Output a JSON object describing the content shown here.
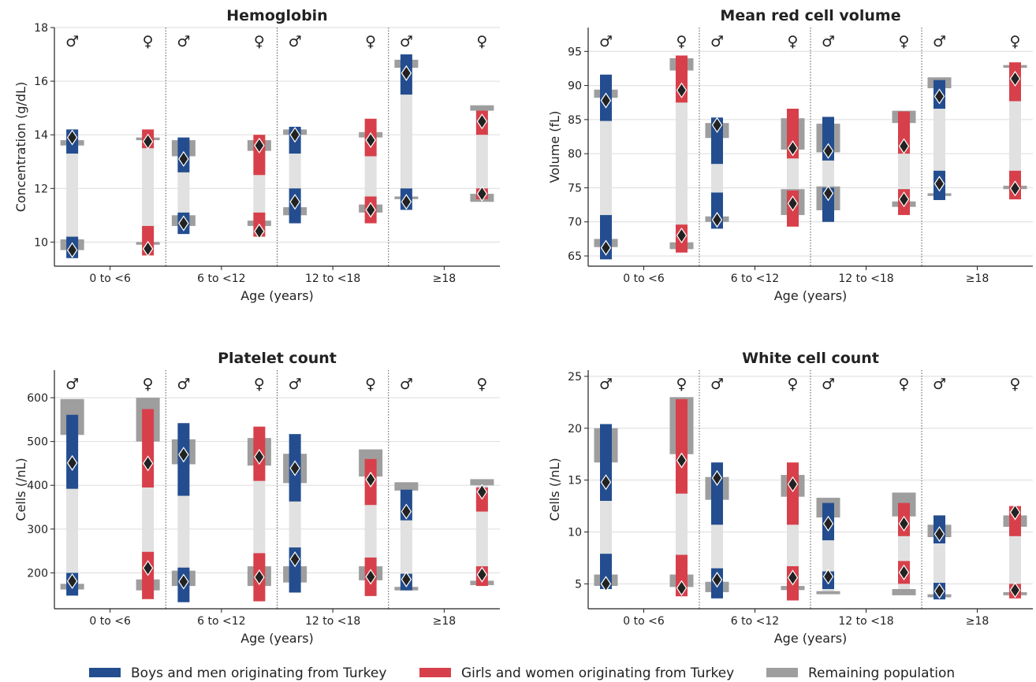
{
  "legend": {
    "items": [
      {
        "label": "Boys and men originating from Turkey",
        "color": "#234d8f"
      },
      {
        "label": "Girls and women originating from Turkey",
        "color": "#d7404a"
      },
      {
        "label": "Remaining population",
        "color": "#9e9e9e"
      }
    ]
  },
  "colors": {
    "boys": "#234d8f",
    "girls": "#d7404a",
    "population": "#9e9e9e",
    "between": "#e1e1e1"
  },
  "sex_symbols": [
    "♂",
    "♀"
  ],
  "chart_data": [
    {
      "type": "range",
      "title": "Hemoglobin",
      "xlabel": "Age (years)",
      "ylabel": "Concentration (g/dL)",
      "ylim": [
        9.1,
        18
      ],
      "yticks": [
        10,
        12,
        14,
        16,
        18
      ],
      "categories": [
        "0 to <6",
        "6 to <12",
        "12 to <18",
        "≥18"
      ],
      "groups": [
        [
          {
            "sex": "♂",
            "lower_pop": [
              9.7,
              10.1
            ],
            "upper_pop": [
              13.6,
              13.8
            ],
            "lower": [
              9.4,
              10.2
            ],
            "upper": [
              13.3,
              14.2
            ],
            "lower_point": 9.7,
            "upper_point": 13.9
          },
          {
            "sex": "♀",
            "lower_pop": [
              9.9,
              10.0
            ],
            "upper_pop": [
              13.8,
              13.9
            ],
            "lower": [
              9.5,
              10.6
            ],
            "upper": [
              13.5,
              14.2
            ],
            "lower_point": 9.75,
            "upper_point": 13.75
          }
        ],
        [
          {
            "sex": "♂",
            "lower_pop": [
              10.6,
              11.0
            ],
            "upper_pop": [
              13.2,
              13.8
            ],
            "lower": [
              10.3,
              11.1
            ],
            "upper": [
              12.6,
              13.9
            ],
            "lower_point": 10.7,
            "upper_point": 13.1
          },
          {
            "sex": "♀",
            "lower_pop": [
              10.6,
              10.8
            ],
            "upper_pop": [
              13.4,
              13.8
            ],
            "lower": [
              10.2,
              11.1
            ],
            "upper": [
              12.5,
              14.0
            ],
            "lower_point": 10.4,
            "upper_point": 13.6
          }
        ],
        [
          {
            "sex": "♂",
            "lower_pop": [
              11.0,
              11.3
            ],
            "upper_pop": [
              14.0,
              14.2
            ],
            "lower": [
              10.7,
              12.0
            ],
            "upper": [
              13.3,
              14.3
            ],
            "lower_point": 11.5,
            "upper_point": 14.0
          },
          {
            "sex": "♀",
            "lower_pop": [
              11.1,
              11.4
            ],
            "upper_pop": [
              13.9,
              14.1
            ],
            "lower": [
              10.7,
              11.7
            ],
            "upper": [
              13.2,
              14.6
            ],
            "lower_point": 11.2,
            "upper_point": 13.8
          }
        ],
        [
          {
            "sex": "♂",
            "lower_pop": [
              11.6,
              11.7
            ],
            "upper_pop": [
              16.5,
              16.8
            ],
            "lower": [
              11.2,
              12.0
            ],
            "upper": [
              15.5,
              17.0
            ],
            "lower_point": 11.5,
            "upper_point": 16.3
          },
          {
            "sex": "♀",
            "lower_pop": [
              11.5,
              11.8
            ],
            "upper_pop": [
              14.9,
              15.1
            ],
            "lower": [
              11.6,
              12.0
            ],
            "upper": [
              14.0,
              14.9
            ],
            "lower_point": 11.8,
            "upper_point": 14.5
          }
        ]
      ]
    },
    {
      "type": "range",
      "title": "Mean red cell volume",
      "xlabel": "Age (years)",
      "ylabel": "Volume (fL)",
      "ylim": [
        63.5,
        98.5
      ],
      "yticks": [
        65,
        70,
        75,
        80,
        85,
        90,
        95
      ],
      "categories": [
        "0 to <6",
        "6 to <12",
        "12 to <18",
        "≥18"
      ],
      "groups": [
        [
          {
            "sex": "♂",
            "lower_pop": [
              66.3,
              67.5
            ],
            "upper_pop": [
              88.2,
              89.4
            ],
            "lower": [
              64.5,
              71.0
            ],
            "upper": [
              84.8,
              91.6
            ],
            "lower_point": 66.2,
            "upper_point": 87.8
          },
          {
            "sex": "♀",
            "lower_pop": [
              66.0,
              67.0
            ],
            "upper_pop": [
              92.2,
              94.0
            ],
            "lower": [
              65.5,
              69.6
            ],
            "upper": [
              87.5,
              94.4
            ],
            "lower_point": 68.0,
            "upper_point": 89.3
          }
        ],
        [
          {
            "sex": "♂",
            "lower_pop": [
              70.0,
              70.8
            ],
            "upper_pop": [
              82.3,
              84.5
            ],
            "lower": [
              69.0,
              74.3
            ],
            "upper": [
              78.5,
              85.3
            ],
            "lower_point": 70.3,
            "upper_point": 84.2
          },
          {
            "sex": "♀",
            "lower_pop": [
              71.0,
              74.8
            ],
            "upper_pop": [
              80.6,
              85.2
            ],
            "lower": [
              69.3,
              74.6
            ],
            "upper": [
              79.3,
              86.6
            ],
            "lower_point": 72.7,
            "upper_point": 80.8
          }
        ],
        [
          {
            "sex": "♂",
            "lower_pop": [
              71.7,
              75.2
            ],
            "upper_pop": [
              80.2,
              84.4
            ],
            "lower": [
              70.0,
              75.0
            ],
            "upper": [
              79.0,
              85.4
            ],
            "lower_point": 74.2,
            "upper_point": 80.4
          },
          {
            "sex": "♀",
            "lower_pop": [
              72.2,
              73.0
            ],
            "upper_pop": [
              84.5,
              86.3
            ],
            "lower": [
              71.0,
              74.8
            ],
            "upper": [
              80.0,
              86.2
            ],
            "lower_point": 73.3,
            "upper_point": 81.1
          }
        ],
        [
          {
            "sex": "♂",
            "lower_pop": [
              73.8,
              74.2
            ],
            "upper_pop": [
              89.6,
              91.2
            ],
            "lower": [
              73.2,
              77.5
            ],
            "upper": [
              86.6,
              90.8
            ],
            "lower_point": 75.6,
            "upper_point": 88.4
          },
          {
            "sex": "♀",
            "lower_pop": [
              74.8,
              75.3
            ],
            "upper_pop": [
              92.6,
              93.0
            ],
            "lower": [
              73.3,
              77.5
            ],
            "upper": [
              87.7,
              93.4
            ],
            "lower_point": 74.9,
            "upper_point": 91.0
          }
        ]
      ]
    },
    {
      "type": "range",
      "title": "Platelet count",
      "xlabel": "Age (years)",
      "ylabel": "Cells (/nL)",
      "ylim": [
        118,
        663
      ],
      "yticks": [
        200,
        300,
        400,
        500,
        600
      ],
      "categories": [
        "0 to <6",
        "6 to <12",
        "12 to <18",
        "≥18"
      ],
      "groups": [
        [
          {
            "sex": "♂",
            "lower_pop": [
              162,
              175
            ],
            "upper_pop": [
              515,
              597
            ],
            "lower": [
              148,
              200
            ],
            "upper": [
              392,
              561
            ],
            "lower_point": 181,
            "upper_point": 451
          },
          {
            "sex": "♀",
            "lower_pop": [
              160,
              185
            ],
            "upper_pop": [
              500,
              600
            ],
            "lower": [
              140,
              248
            ],
            "upper": [
              395,
              574
            ],
            "lower_point": 211,
            "upper_point": 450
          }
        ],
        [
          {
            "sex": "♂",
            "lower_pop": [
              170,
              205
            ],
            "upper_pop": [
              448,
              505
            ],
            "lower": [
              133,
              212
            ],
            "upper": [
              376,
              542
            ],
            "lower_point": 180,
            "upper_point": 470
          },
          {
            "sex": "♀",
            "lower_pop": [
              170,
              215
            ],
            "upper_pop": [
              445,
              508
            ],
            "lower": [
              135,
              245
            ],
            "upper": [
              410,
              534
            ],
            "lower_point": 190,
            "upper_point": 465
          }
        ],
        [
          {
            "sex": "♂",
            "lower_pop": [
              178,
              215
            ],
            "upper_pop": [
              405,
              472
            ],
            "lower": [
              155,
              258
            ],
            "upper": [
              363,
              517
            ],
            "lower_point": 231,
            "upper_point": 439
          },
          {
            "sex": "♀",
            "lower_pop": [
              183,
              215
            ],
            "upper_pop": [
              420,
              482
            ],
            "lower": [
              147,
              235
            ],
            "upper": [
              355,
              460
            ],
            "lower_point": 191,
            "upper_point": 413
          }
        ],
        [
          {
            "sex": "♂",
            "lower_pop": [
              160,
              168
            ],
            "upper_pop": [
              388,
              407
            ],
            "lower": [
              160,
              198
            ],
            "upper": [
              320,
              390
            ],
            "lower_point": 185,
            "upper_point": 340
          },
          {
            "sex": "♀",
            "lower_pop": [
              172,
              182
            ],
            "upper_pop": [
              400,
              414
            ],
            "lower": [
              170,
              215
            ],
            "upper": [
              340,
              395
            ],
            "lower_point": 196,
            "upper_point": 385
          }
        ]
      ]
    },
    {
      "type": "range",
      "title": "White cell count",
      "xlabel": "Age (years)",
      "ylabel": "Cells (/nL)",
      "ylim": [
        2.6,
        25.6
      ],
      "yticks": [
        5,
        10,
        15,
        20,
        25
      ],
      "categories": [
        "0 to <6",
        "6 to <12",
        "12 to <18",
        "≥18"
      ],
      "groups": [
        [
          {
            "sex": "♂",
            "lower_pop": [
              4.8,
              5.9
            ],
            "upper_pop": [
              16.7,
              20.0
            ],
            "lower": [
              4.5,
              7.9
            ],
            "upper": [
              13.0,
              20.4
            ],
            "lower_point": 5.0,
            "upper_point": 14.8
          },
          {
            "sex": "♀",
            "lower_pop": [
              4.7,
              5.9
            ],
            "upper_pop": [
              17.5,
              23.0
            ],
            "lower": [
              3.8,
              7.8
            ],
            "upper": [
              13.7,
              22.8
            ],
            "lower_point": 4.6,
            "upper_point": 16.9
          }
        ],
        [
          {
            "sex": "♂",
            "lower_pop": [
              4.2,
              5.2
            ],
            "upper_pop": [
              13.1,
              15.3
            ],
            "lower": [
              3.6,
              6.5
            ],
            "upper": [
              10.7,
              16.7
            ],
            "lower_point": 5.4,
            "upper_point": 15.2
          },
          {
            "sex": "♀",
            "lower_pop": [
              4.4,
              4.8
            ],
            "upper_pop": [
              13.4,
              15.5
            ],
            "lower": [
              3.4,
              6.7
            ],
            "upper": [
              10.7,
              16.7
            ],
            "lower_point": 5.6,
            "upper_point": 14.6
          }
        ],
        [
          {
            "sex": "♂",
            "lower_pop": [
              4.0,
              4.3
            ],
            "upper_pop": [
              11.4,
              13.3
            ],
            "lower": [
              4.5,
              6.2
            ],
            "upper": [
              9.2,
              12.8
            ],
            "lower_point": 5.7,
            "upper_point": 10.8
          },
          {
            "sex": "♀",
            "lower_pop": [
              3.9,
              4.5
            ],
            "upper_pop": [
              11.5,
              13.8
            ],
            "lower": [
              5.0,
              7.2
            ],
            "upper": [
              9.6,
              12.8
            ],
            "lower_point": 6.1,
            "upper_point": 10.8
          }
        ],
        [
          {
            "sex": "♂",
            "lower_pop": [
              3.7,
              4.0
            ],
            "upper_pop": [
              9.5,
              10.7
            ],
            "lower": [
              3.5,
              5.1
            ],
            "upper": [
              8.9,
              11.6
            ],
            "lower_point": 4.3,
            "upper_point": 9.8
          },
          {
            "sex": "♀",
            "lower_pop": [
              3.9,
              4.2
            ],
            "upper_pop": [
              10.5,
              11.6
            ],
            "lower": [
              3.6,
              5.0
            ],
            "upper": [
              9.6,
              12.5
            ],
            "lower_point": 4.4,
            "upper_point": 11.9
          }
        ]
      ]
    }
  ]
}
